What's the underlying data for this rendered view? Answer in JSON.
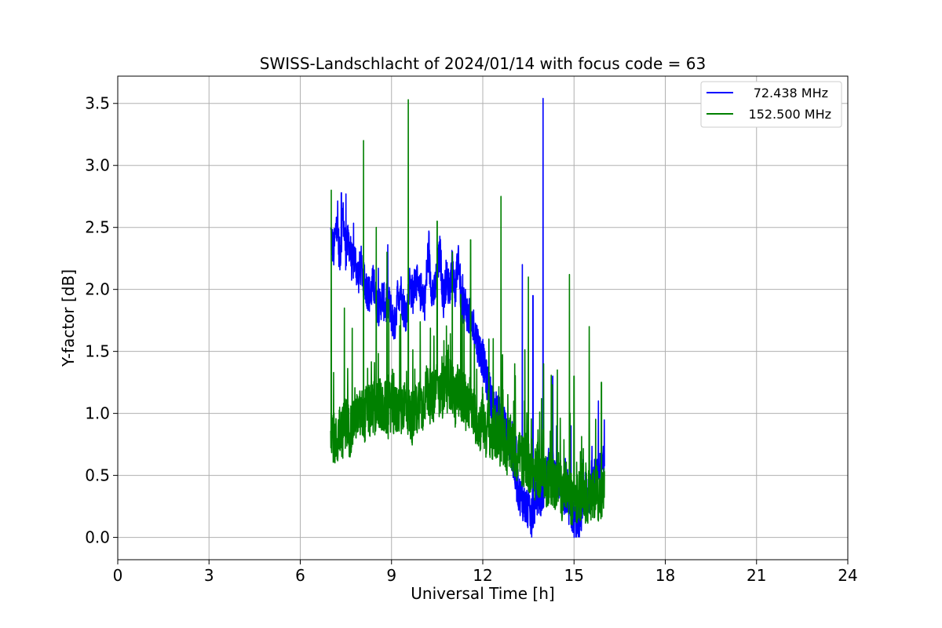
{
  "chart_data": {
    "type": "line",
    "title": "SWISS-Landschlacht of 2024/01/14 with focus code = 63",
    "xlabel": "Universal Time [h]",
    "ylabel": "Y-factor [dB]",
    "xlim": [
      0,
      24
    ],
    "ylim": [
      -0.18,
      3.72
    ],
    "xticks": [
      0,
      3,
      6,
      9,
      12,
      15,
      18,
      21,
      24
    ],
    "yticks": [
      0.0,
      0.5,
      1.0,
      1.5,
      2.0,
      2.5,
      3.0,
      3.5
    ],
    "ytick_labels": [
      "0.0",
      "0.5",
      "1.0",
      "1.5",
      "2.0",
      "2.5",
      "3.0",
      "3.5"
    ],
    "grid": true,
    "legend_position": "top-right",
    "series": [
      {
        "name": "72.438 MHz",
        "color": "#0000ff",
        "x": [
          7.0,
          7.1,
          7.2,
          7.3,
          7.4,
          7.5,
          7.6,
          7.7,
          7.8,
          7.9,
          8.0,
          8.1,
          8.2,
          8.3,
          8.4,
          8.5,
          8.6,
          8.7,
          8.8,
          8.9,
          9.0,
          9.1,
          9.2,
          9.3,
          9.4,
          9.5,
          9.6,
          9.7,
          9.8,
          9.9,
          10.0,
          10.1,
          10.2,
          10.3,
          10.4,
          10.5,
          10.6,
          10.7,
          10.8,
          10.9,
          11.0,
          11.1,
          11.2,
          11.3,
          11.4,
          11.5,
          11.6,
          11.7,
          11.8,
          11.9,
          12.0,
          12.1,
          12.2,
          12.3,
          12.4,
          12.5,
          12.6,
          12.7,
          12.8,
          12.9,
          13.0,
          13.1,
          13.2,
          13.3,
          13.4,
          13.5,
          13.6,
          13.7,
          13.8,
          13.9,
          14.0,
          14.1,
          14.2,
          14.3,
          14.4,
          14.5,
          14.6,
          14.7,
          14.8,
          14.9,
          15.0,
          15.1,
          15.2,
          15.3,
          15.4,
          15.5,
          15.6,
          15.7,
          15.8,
          15.9,
          16.0
        ],
        "y": [
          2.45,
          2.3,
          2.55,
          2.25,
          2.6,
          2.3,
          2.4,
          2.2,
          2.25,
          2.1,
          2.2,
          2.05,
          2.0,
          1.95,
          2.05,
          1.9,
          1.85,
          1.95,
          1.85,
          1.9,
          1.8,
          1.7,
          1.95,
          2.0,
          1.85,
          1.8,
          2.05,
          1.95,
          2.1,
          1.95,
          2.0,
          1.9,
          2.3,
          2.05,
          1.95,
          2.15,
          2.3,
          1.9,
          2.1,
          2.0,
          2.2,
          1.95,
          2.3,
          1.85,
          1.9,
          1.8,
          1.75,
          1.7,
          1.6,
          1.5,
          1.45,
          1.3,
          1.2,
          1.1,
          1.05,
          1.0,
          0.95,
          0.9,
          0.85,
          0.8,
          0.6,
          0.45,
          0.35,
          0.3,
          0.25,
          0.2,
          0.15,
          0.25,
          0.35,
          0.3,
          0.4,
          0.5,
          0.6,
          0.55,
          0.5,
          0.45,
          0.4,
          0.3,
          0.25,
          0.2,
          0.15,
          0.1,
          0.15,
          0.25,
          0.3,
          0.35,
          0.4,
          0.45,
          0.5,
          0.55,
          0.6
        ],
        "spikes": [
          [
            7.35,
            2.78
          ],
          [
            7.5,
            2.77
          ],
          [
            13.3,
            2.2
          ],
          [
            13.65,
            1.95
          ],
          [
            13.98,
            3.54
          ],
          [
            14.3,
            1.3
          ],
          [
            14.9,
            0.9
          ],
          [
            15.8,
            1.1
          ]
        ]
      },
      {
        "name": "152.500 MHz",
        "color": "#008000",
        "x": [
          7.0,
          7.1,
          7.2,
          7.3,
          7.4,
          7.5,
          7.6,
          7.7,
          7.8,
          7.9,
          8.0,
          8.1,
          8.2,
          8.3,
          8.4,
          8.5,
          8.6,
          8.7,
          8.8,
          8.9,
          9.0,
          9.1,
          9.2,
          9.3,
          9.4,
          9.5,
          9.6,
          9.7,
          9.8,
          9.9,
          10.0,
          10.1,
          10.2,
          10.3,
          10.4,
          10.5,
          10.6,
          10.7,
          10.8,
          10.9,
          11.0,
          11.1,
          11.2,
          11.3,
          11.4,
          11.5,
          11.6,
          11.7,
          11.8,
          11.9,
          12.0,
          12.1,
          12.2,
          12.3,
          12.4,
          12.5,
          12.6,
          12.7,
          12.8,
          12.9,
          13.0,
          13.1,
          13.2,
          13.3,
          13.4,
          13.5,
          13.6,
          13.7,
          13.8,
          13.9,
          14.0,
          14.1,
          14.2,
          14.3,
          14.4,
          14.5,
          14.6,
          14.7,
          14.8,
          14.9,
          15.0,
          15.1,
          15.2,
          15.3,
          15.4,
          15.5,
          15.6,
          15.7,
          15.8,
          15.9,
          16.0
        ],
        "y": [
          0.95,
          0.8,
          0.75,
          0.9,
          0.85,
          0.95,
          0.85,
          0.9,
          1.0,
          0.95,
          1.0,
          0.95,
          1.05,
          1.0,
          1.05,
          1.0,
          1.1,
          1.0,
          1.05,
          1.0,
          1.1,
          1.0,
          1.05,
          1.0,
          1.1,
          1.05,
          1.0,
          0.95,
          1.0,
          1.1,
          1.05,
          1.15,
          1.2,
          1.1,
          1.15,
          1.25,
          1.1,
          1.2,
          1.15,
          1.25,
          1.2,
          1.1,
          1.2,
          1.15,
          1.1,
          1.05,
          1.0,
          1.0,
          0.95,
          0.9,
          0.95,
          0.85,
          0.9,
          0.8,
          0.85,
          0.8,
          0.75,
          0.8,
          0.7,
          0.75,
          0.7,
          0.65,
          0.7,
          0.6,
          0.65,
          0.55,
          0.6,
          0.5,
          0.55,
          0.5,
          0.55,
          0.45,
          0.5,
          0.45,
          0.4,
          0.5,
          0.35,
          0.4,
          0.35,
          0.3,
          0.35,
          0.3,
          0.35,
          0.4,
          0.3,
          0.35,
          0.3,
          0.4,
          0.35,
          0.3,
          0.4
        ],
        "spikes": [
          [
            7.02,
            2.8
          ],
          [
            7.45,
            1.85
          ],
          [
            8.08,
            3.2
          ],
          [
            8.5,
            2.5
          ],
          [
            8.85,
            2.3
          ],
          [
            9.3,
            1.8
          ],
          [
            9.55,
            3.53
          ],
          [
            10.5,
            2.55
          ],
          [
            11.0,
            2.3
          ],
          [
            11.6,
            2.4
          ],
          [
            12.2,
            1.6
          ],
          [
            12.6,
            2.75
          ],
          [
            13.05,
            1.4
          ],
          [
            13.5,
            2.1
          ],
          [
            14.0,
            1.4
          ],
          [
            14.45,
            1.35
          ],
          [
            14.85,
            2.12
          ],
          [
            15.0,
            1.3
          ],
          [
            15.5,
            1.7
          ],
          [
            15.9,
            1.25
          ]
        ]
      }
    ]
  }
}
